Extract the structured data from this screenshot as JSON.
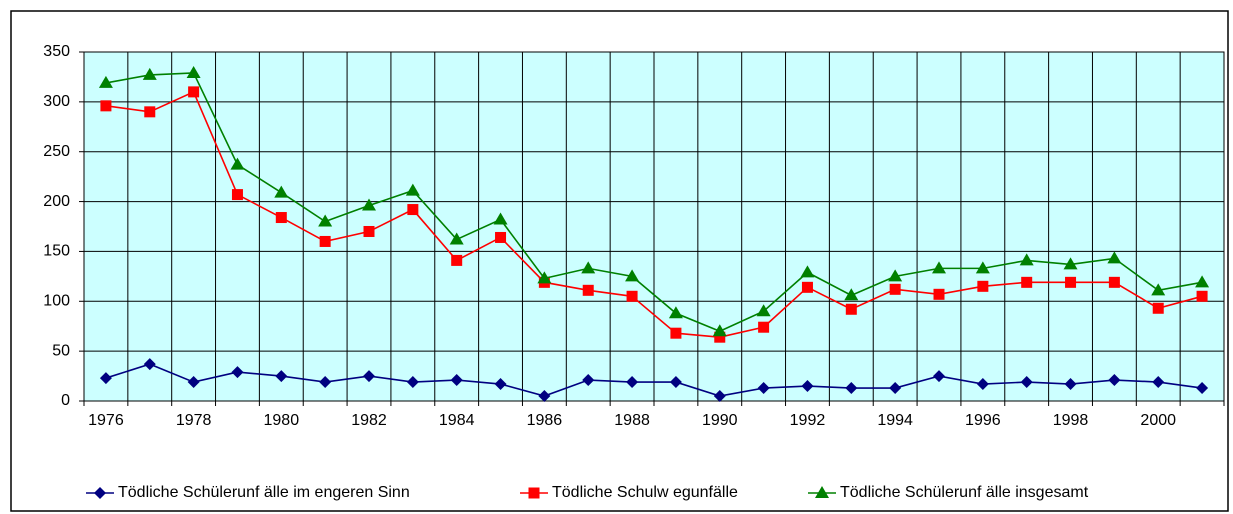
{
  "chart_data": {
    "type": "line",
    "categories": [
      "1976",
      null,
      "1978",
      null,
      "1980",
      null,
      "1982",
      null,
      "1984",
      null,
      "1986",
      null,
      "1988",
      null,
      "1990",
      null,
      "1992",
      null,
      "1994",
      null,
      "1996",
      null,
      "1998",
      null,
      "2000",
      null
    ],
    "series": [
      {
        "name": "Tödliche Schülerunf älle im engeren Sinn",
        "color": "#000080",
        "marker": "diamond",
        "values": [
          23,
          37,
          19,
          29,
          25,
          19,
          25,
          19,
          21,
          17,
          5,
          21,
          19,
          19,
          5,
          13,
          15,
          13,
          13,
          25,
          17,
          19,
          17,
          21,
          19,
          13
        ]
      },
      {
        "name": "Tödliche Schulw egunfälle",
        "color": "#ff0000",
        "marker": "square",
        "values": [
          296,
          290,
          310,
          207,
          184,
          160,
          170,
          192,
          141,
          164,
          119,
          111,
          105,
          68,
          64,
          74,
          114,
          92,
          112,
          107,
          115,
          119,
          119,
          119,
          93,
          105
        ]
      },
      {
        "name": "Tödliche Schülerunf älle insgesamt",
        "color": "#008000",
        "marker": "triangle",
        "values": [
          319,
          327,
          329,
          237,
          209,
          180,
          196,
          211,
          162,
          182,
          123,
          133,
          125,
          88,
          70,
          90,
          129,
          106,
          125,
          133,
          133,
          141,
          137,
          143,
          111,
          119
        ]
      }
    ],
    "ylim": [
      0,
      350
    ],
    "yticks": [
      0,
      50,
      100,
      150,
      200,
      250,
      300,
      350
    ],
    "grid": true,
    "plot_background": "#ccffff",
    "legend": "bottom"
  }
}
